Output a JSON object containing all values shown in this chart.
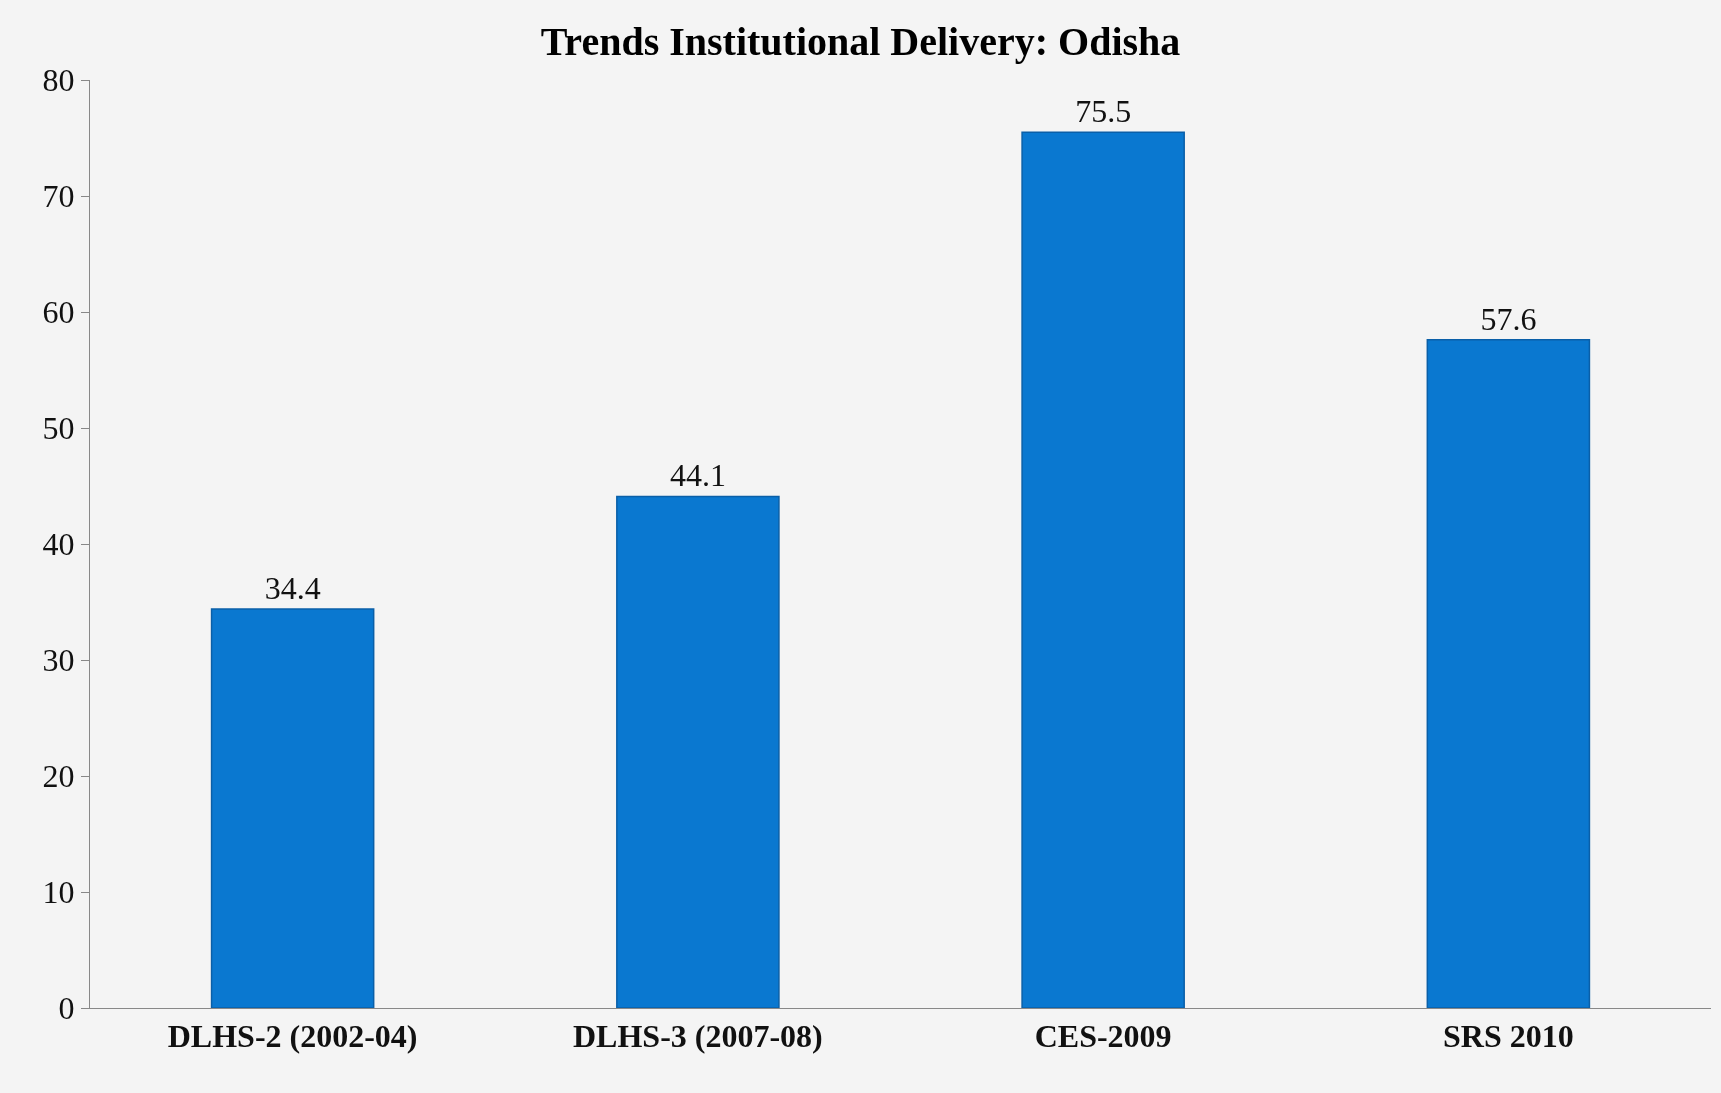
{
  "chart_data": {
    "type": "bar",
    "title": "Trends Institutional Delivery: Odisha",
    "categories": [
      "DLHS-2 (2002-04)",
      "DLHS-3 (2007-08)",
      "CES-2009",
      "SRS 2010"
    ],
    "values": [
      34.4,
      44.1,
      75.5,
      57.6
    ],
    "color": "#0a78d0",
    "ylim": [
      0,
      80
    ],
    "yticks": [
      0,
      10,
      20,
      30,
      40,
      50,
      60,
      70,
      80
    ],
    "grid": false,
    "data_labels": true
  }
}
